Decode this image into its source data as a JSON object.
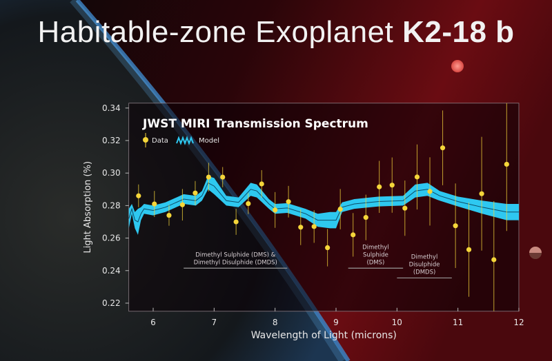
{
  "header": {
    "title_main": "Habitable-zone Exoplanet",
    "title_bold": "K2-18 b"
  },
  "chart_data": {
    "type": "scatter",
    "title": "JWST MIRI Transmission Spectrum",
    "xlabel": "Wavelength of Light (microns)",
    "ylabel": "Light Absorption (%)",
    "xlim": [
      5.6,
      12
    ],
    "ylim": [
      0.215,
      0.343
    ],
    "xticks": [
      "6",
      "7",
      "8",
      "9",
      "10",
      "11",
      "12"
    ],
    "yticks": [
      "0.22",
      "0.24",
      "0.26",
      "0.28",
      "0.30",
      "0.32",
      "0.34"
    ],
    "legend": {
      "placement": "top-left",
      "entries": [
        "Data",
        "Model"
      ]
    },
    "colors": {
      "data": "#f5d63a",
      "model": "#2ec8f0",
      "model_line": "#0b4a66"
    },
    "series": [
      {
        "name": "Data",
        "type": "errorbar",
        "x": [
          5.76,
          6.02,
          6.26,
          6.48,
          6.69,
          6.91,
          7.14,
          7.36,
          7.56,
          7.78,
          8.0,
          8.22,
          8.42,
          8.64,
          8.86,
          9.07,
          9.28,
          9.49,
          9.71,
          9.92,
          10.13,
          10.33,
          10.54,
          10.75,
          10.96,
          11.18,
          11.39,
          11.59,
          11.8
        ],
        "y": [
          0.286,
          0.281,
          0.274,
          0.2805,
          0.2877,
          0.2975,
          0.2975,
          0.27,
          0.2812,
          0.2933,
          0.2773,
          0.2824,
          0.2667,
          0.2671,
          0.2541,
          0.2778,
          0.262,
          0.2727,
          0.2915,
          0.2926,
          0.2784,
          0.2976,
          0.2887,
          0.3155,
          0.2676,
          0.2529,
          0.2873,
          0.2467,
          0.3054
        ],
        "err": [
          0.007,
          0.008,
          0.0064,
          0.0097,
          0.0074,
          0.0088,
          0.0062,
          0.008,
          0.0064,
          0.0085,
          0.011,
          0.0097,
          0.011,
          0.01,
          0.0115,
          0.0124,
          0.0134,
          0.014,
          0.016,
          0.017,
          0.017,
          0.02,
          0.021,
          0.023,
          0.026,
          0.029,
          0.035,
          0.036,
          0.041
        ]
      },
      {
        "name": "Model",
        "type": "band",
        "x": [
          5.6,
          5.65,
          5.7,
          5.75,
          5.8,
          5.85,
          6.0,
          6.2,
          6.5,
          6.7,
          6.8,
          6.9,
          7.0,
          7.2,
          7.4,
          7.6,
          7.7,
          7.9,
          8.0,
          8.2,
          8.5,
          8.7,
          8.9,
          9.0,
          9.1,
          9.3,
          9.7,
          10.1,
          10.3,
          10.5,
          10.7,
          11.0,
          11.4,
          11.8,
          12.0
        ],
        "y": [
          0.272,
          0.278,
          0.271,
          0.27,
          0.275,
          0.278,
          0.277,
          0.279,
          0.284,
          0.283,
          0.286,
          0.294,
          0.292,
          0.283,
          0.282,
          0.29,
          0.289,
          0.281,
          0.278,
          0.2785,
          0.275,
          0.271,
          0.271,
          0.271,
          0.279,
          0.281,
          0.2825,
          0.283,
          0.289,
          0.29,
          0.286,
          0.2825,
          0.279,
          0.276,
          0.276
        ],
        "halfwidth": [
          0.006,
          0.003,
          0.005,
          0.008,
          0.004,
          0.003,
          0.003,
          0.003,
          0.003,
          0.003,
          0.003,
          0.004,
          0.005,
          0.003,
          0.003,
          0.004,
          0.004,
          0.003,
          0.003,
          0.003,
          0.003,
          0.004,
          0.005,
          0.005,
          0.003,
          0.003,
          0.003,
          0.003,
          0.004,
          0.004,
          0.003,
          0.003,
          0.004,
          0.005,
          0.005
        ]
      }
    ],
    "annotations": [
      {
        "lines": [
          "Dimethyl Sulphide (DMS) &",
          "Dimethyl Disulphide (DMDS)"
        ],
        "x_range": [
          6.5,
          8.2
        ],
        "y": 0.2415
      },
      {
        "lines": [
          "Dimethyl",
          "Sulphide",
          "(DMS)"
        ],
        "x_range": [
          9.2,
          10.1
        ],
        "y": 0.2415
      },
      {
        "lines": [
          "Dimethyl",
          "Disulphide",
          "(DMDS)"
        ],
        "x_range": [
          10.0,
          10.9
        ],
        "y": 0.2355
      }
    ],
    "grid": false
  }
}
